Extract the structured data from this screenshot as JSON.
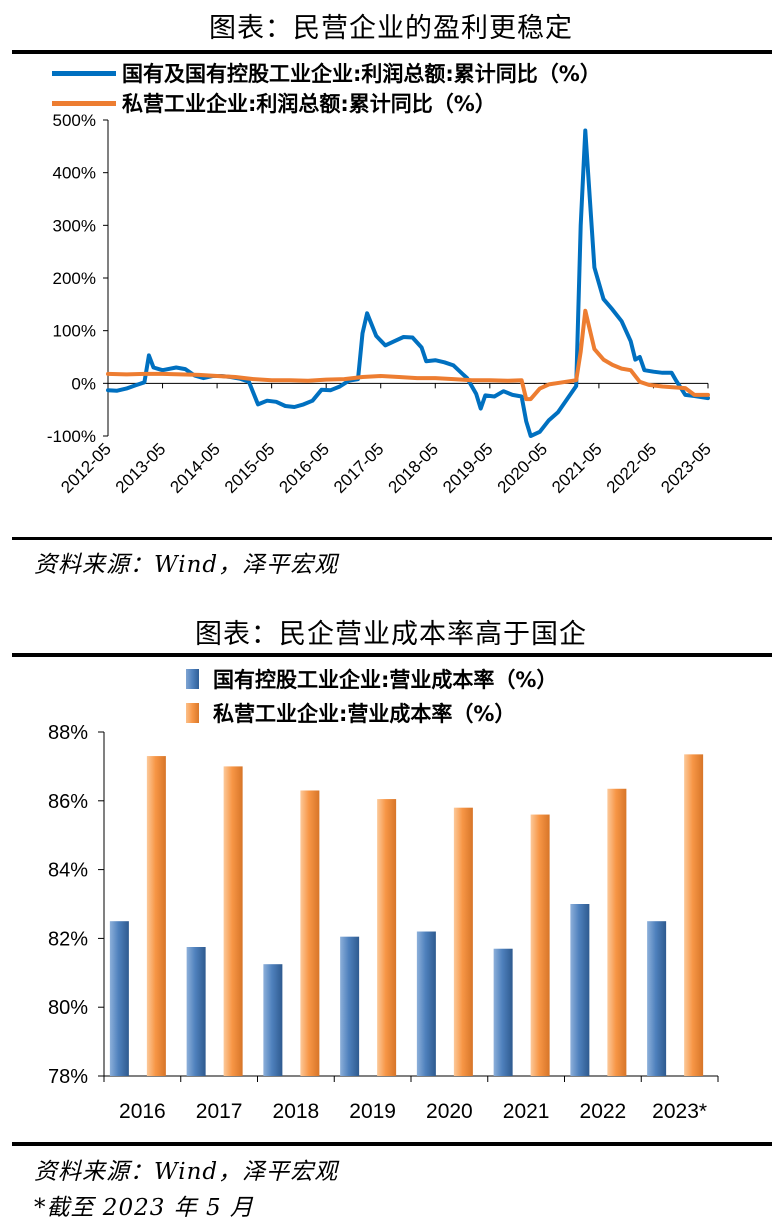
{
  "chart1": {
    "title": "图表：民营企业的盈利更稳定",
    "source": "资料来源：Wind，泽平宏观",
    "chart_data": {
      "type": "line",
      "title": "图表：民营企业的盈利更稳定",
      "xlabel": "",
      "ylabel": "",
      "ylim": [
        -100,
        500
      ],
      "y_ticks": [
        500,
        400,
        300,
        200,
        100,
        0,
        -100
      ],
      "y_tick_labels": [
        "500%",
        "400%",
        "300%",
        "200%",
        "100%",
        "0%",
        "-100%"
      ],
      "x_tick_labels": [
        "2012-05",
        "2013-05",
        "2014-05",
        "2015-05",
        "2016-05",
        "2017-05",
        "2018-05",
        "2019-05",
        "2020-05",
        "2021-05",
        "2022-05",
        "2023-05"
      ],
      "legend_position": "top",
      "grid": false,
      "series": [
        {
          "name": "国有及国有控股工业企业:利润总额:累计同比（%）",
          "color": "#0070C0",
          "points": [
            [
              "2012-05",
              -13
            ],
            [
              "2012-07",
              -14
            ],
            [
              "2012-09",
              -10
            ],
            [
              "2012-11",
              -4
            ],
            [
              "2013-01",
              2
            ],
            [
              "2013-02",
              53
            ],
            [
              "2013-03",
              30
            ],
            [
              "2013-05",
              25
            ],
            [
              "2013-08",
              30
            ],
            [
              "2013-10",
              27
            ],
            [
              "2013-12",
              15
            ],
            [
              "2014-02",
              10
            ],
            [
              "2014-04",
              14
            ],
            [
              "2014-06",
              14
            ],
            [
              "2014-08",
              12
            ],
            [
              "2014-10",
              9
            ],
            [
              "2014-12",
              3
            ],
            [
              "2015-02",
              -40
            ],
            [
              "2015-04",
              -33
            ],
            [
              "2015-06",
              -35
            ],
            [
              "2015-08",
              -43
            ],
            [
              "2015-10",
              -45
            ],
            [
              "2015-12",
              -40
            ],
            [
              "2016-02",
              -33
            ],
            [
              "2016-04",
              -12
            ],
            [
              "2016-06",
              -13
            ],
            [
              "2016-08",
              -6
            ],
            [
              "2016-10",
              5
            ],
            [
              "2016-12",
              8
            ],
            [
              "2017-01",
              95
            ],
            [
              "2017-02",
              133
            ],
            [
              "2017-04",
              90
            ],
            [
              "2017-06",
              72
            ],
            [
              "2017-08",
              80
            ],
            [
              "2017-10",
              88
            ],
            [
              "2017-12",
              87
            ],
            [
              "2018-02",
              68
            ],
            [
              "2018-03",
              42
            ],
            [
              "2018-05",
              44
            ],
            [
              "2018-07",
              40
            ],
            [
              "2018-09",
              34
            ],
            [
              "2018-11",
              18
            ],
            [
              "2018-12",
              10
            ],
            [
              "2019-02",
              -20
            ],
            [
              "2019-03",
              -48
            ],
            [
              "2019-04",
              -23
            ],
            [
              "2019-06",
              -25
            ],
            [
              "2019-08",
              -15
            ],
            [
              "2019-10",
              -22
            ],
            [
              "2019-12",
              -25
            ],
            [
              "2020-01",
              -72
            ],
            [
              "2020-02",
              -100
            ],
            [
              "2020-04",
              -92
            ],
            [
              "2020-06",
              -70
            ],
            [
              "2020-08",
              -55
            ],
            [
              "2020-10",
              -30
            ],
            [
              "2020-12",
              -5
            ],
            [
              "2021-01",
              300
            ],
            [
              "2021-02",
              480
            ],
            [
              "2021-04",
              220
            ],
            [
              "2021-06",
              160
            ],
            [
              "2021-08",
              140
            ],
            [
              "2021-10",
              118
            ],
            [
              "2021-12",
              80
            ],
            [
              "2022-01",
              45
            ],
            [
              "2022-02",
              50
            ],
            [
              "2022-03",
              25
            ],
            [
              "2022-05",
              22
            ],
            [
              "2022-07",
              20
            ],
            [
              "2022-09",
              20
            ],
            [
              "2022-10",
              5
            ],
            [
              "2022-12",
              -22
            ],
            [
              "2023-02",
              -24
            ],
            [
              "2023-05",
              -28
            ]
          ]
        },
        {
          "name": "私营工业企业:利润总额:累计同比（%）",
          "color": "#ED7D31",
          "points": [
            [
              "2012-05",
              18
            ],
            [
              "2012-09",
              17
            ],
            [
              "2013-01",
              18
            ],
            [
              "2013-05",
              18
            ],
            [
              "2013-09",
              17
            ],
            [
              "2014-01",
              16
            ],
            [
              "2014-05",
              14
            ],
            [
              "2014-09",
              12
            ],
            [
              "2015-01",
              8
            ],
            [
              "2015-05",
              6
            ],
            [
              "2015-09",
              6
            ],
            [
              "2016-01",
              5
            ],
            [
              "2016-05",
              7
            ],
            [
              "2016-09",
              8
            ],
            [
              "2017-01",
              12
            ],
            [
              "2017-05",
              14
            ],
            [
              "2017-09",
              12
            ],
            [
              "2018-01",
              10
            ],
            [
              "2018-05",
              10
            ],
            [
              "2018-09",
              8
            ],
            [
              "2019-01",
              6
            ],
            [
              "2019-05",
              6
            ],
            [
              "2019-09",
              5
            ],
            [
              "2019-12",
              6
            ],
            [
              "2020-01",
              -30
            ],
            [
              "2020-02",
              -30
            ],
            [
              "2020-04",
              -10
            ],
            [
              "2020-06",
              -2
            ],
            [
              "2020-09",
              2
            ],
            [
              "2020-12",
              6
            ],
            [
              "2021-01",
              60
            ],
            [
              "2021-02",
              138
            ],
            [
              "2021-04",
              65
            ],
            [
              "2021-06",
              45
            ],
            [
              "2021-08",
              35
            ],
            [
              "2021-10",
              28
            ],
            [
              "2021-12",
              25
            ],
            [
              "2022-02",
              3
            ],
            [
              "2022-04",
              -3
            ],
            [
              "2022-07",
              -6
            ],
            [
              "2022-10",
              -8
            ],
            [
              "2022-12",
              -9
            ],
            [
              "2023-02",
              -22
            ],
            [
              "2023-05",
              -22
            ]
          ]
        }
      ]
    }
  },
  "chart2": {
    "title": "图表：民企营业成本率高于国企",
    "source": "资料来源：Wind，泽平宏观",
    "note": "*截至 2023 年 5 月",
    "chart_data": {
      "type": "bar",
      "title": "图表：民企营业成本率高于国企",
      "xlabel": "",
      "ylabel": "",
      "ylim": [
        78,
        88
      ],
      "y_ticks": [
        88,
        86,
        84,
        82,
        80,
        78
      ],
      "y_tick_labels": [
        "88%",
        "86%",
        "84%",
        "82%",
        "80%",
        "78%"
      ],
      "categories": [
        "2016",
        "2017",
        "2018",
        "2019",
        "2020",
        "2021",
        "2022",
        "2023*"
      ],
      "legend_position": "top",
      "grid": false,
      "series": [
        {
          "name": "国有控股工业企业:营业成本率（%）",
          "color": "#4F81BD",
          "values": [
            82.5,
            81.75,
            81.25,
            82.05,
            82.2,
            81.7,
            83.0,
            82.5
          ]
        },
        {
          "name": "私营工业企业:营业成本率（%）",
          "color": "#F79646",
          "values": [
            87.3,
            87.0,
            86.3,
            86.05,
            85.8,
            85.6,
            86.35,
            87.35
          ]
        }
      ]
    }
  }
}
